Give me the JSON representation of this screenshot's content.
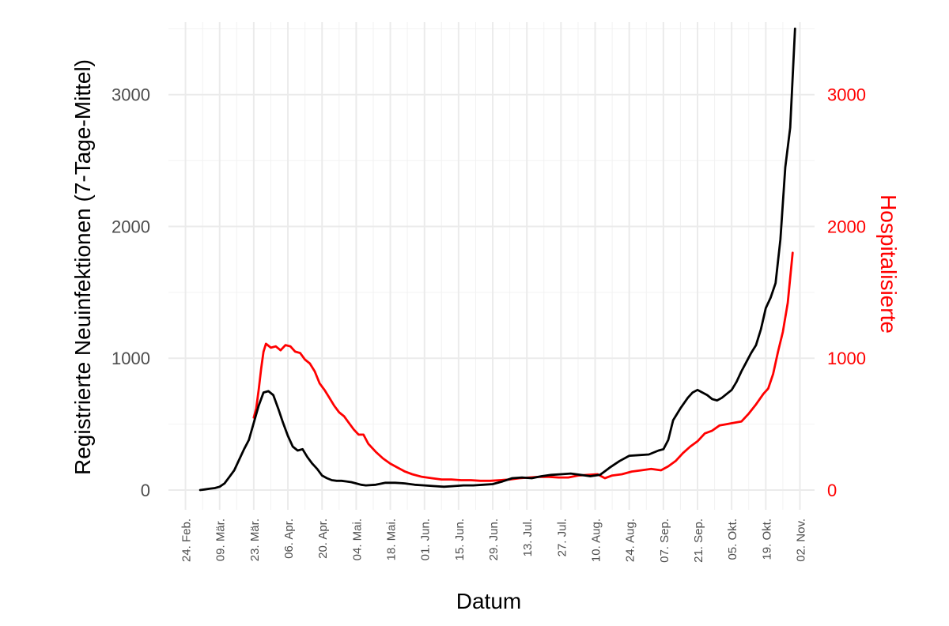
{
  "chart_data": {
    "type": "line",
    "xlabel": "Datum",
    "ylabel_left": "Registrierte Neuinfektionen (7-Tage-Mittel)",
    "ylabel_right": "Hospitalisierte",
    "x_range": [
      "2020-02-17",
      "2020-11-08"
    ],
    "ylim_left": [
      -150,
      3550
    ],
    "ylim_right": [
      -150,
      3550
    ],
    "y_ticks_left": [
      0,
      1000,
      2000,
      3000
    ],
    "y_ticks_right": [
      0,
      1000,
      2000,
      3000
    ],
    "x_ticks": [
      {
        "date": "2020-02-24",
        "label": "24. Feb."
      },
      {
        "date": "2020-03-09",
        "label": "09. Mär."
      },
      {
        "date": "2020-03-23",
        "label": "23. Mär."
      },
      {
        "date": "2020-04-06",
        "label": "06. Apr."
      },
      {
        "date": "2020-04-20",
        "label": "20. Apr."
      },
      {
        "date": "2020-05-04",
        "label": "04. Mai."
      },
      {
        "date": "2020-05-18",
        "label": "18. Mai."
      },
      {
        "date": "2020-06-01",
        "label": "01. Jun."
      },
      {
        "date": "2020-06-15",
        "label": "15. Jun."
      },
      {
        "date": "2020-06-29",
        "label": "29. Jun."
      },
      {
        "date": "2020-07-13",
        "label": "13. Jul."
      },
      {
        "date": "2020-07-27",
        "label": "27. Jul."
      },
      {
        "date": "2020-08-10",
        "label": "10. Aug."
      },
      {
        "date": "2020-08-24",
        "label": "24. Aug."
      },
      {
        "date": "2020-09-07",
        "label": "07. Sep."
      },
      {
        "date": "2020-09-21",
        "label": "21. Sep."
      },
      {
        "date": "2020-10-05",
        "label": "05. Okt."
      },
      {
        "date": "2020-10-19",
        "label": "19. Okt."
      },
      {
        "date": "2020-11-02",
        "label": "02. Nov."
      }
    ],
    "grid": true,
    "series": [
      {
        "color": "#000000",
        "axis": "left",
        "points": [
          [
            "2020-03-01",
            0
          ],
          [
            "2020-03-03",
            5
          ],
          [
            "2020-03-05",
            10
          ],
          [
            "2020-03-07",
            15
          ],
          [
            "2020-03-09",
            25
          ],
          [
            "2020-03-11",
            50
          ],
          [
            "2020-03-13",
            100
          ],
          [
            "2020-03-15",
            150
          ],
          [
            "2020-03-17",
            230
          ],
          [
            "2020-03-19",
            310
          ],
          [
            "2020-03-21",
            380
          ],
          [
            "2020-03-23",
            510
          ],
          [
            "2020-03-25",
            640
          ],
          [
            "2020-03-27",
            740
          ],
          [
            "2020-03-29",
            750
          ],
          [
            "2020-03-31",
            720
          ],
          [
            "2020-04-02",
            620
          ],
          [
            "2020-04-04",
            510
          ],
          [
            "2020-04-06",
            410
          ],
          [
            "2020-04-08",
            330
          ],
          [
            "2020-04-10",
            300
          ],
          [
            "2020-04-12",
            310
          ],
          [
            "2020-04-14",
            250
          ],
          [
            "2020-04-16",
            200
          ],
          [
            "2020-04-18",
            160
          ],
          [
            "2020-04-20",
            110
          ],
          [
            "2020-04-22",
            90
          ],
          [
            "2020-04-24",
            75
          ],
          [
            "2020-04-26",
            70
          ],
          [
            "2020-04-28",
            70
          ],
          [
            "2020-04-30",
            65
          ],
          [
            "2020-05-02",
            60
          ],
          [
            "2020-05-04",
            50
          ],
          [
            "2020-05-06",
            40
          ],
          [
            "2020-05-08",
            35
          ],
          [
            "2020-05-12",
            40
          ],
          [
            "2020-05-16",
            55
          ],
          [
            "2020-05-20",
            55
          ],
          [
            "2020-05-24",
            50
          ],
          [
            "2020-05-28",
            40
          ],
          [
            "2020-06-01",
            35
          ],
          [
            "2020-06-05",
            30
          ],
          [
            "2020-06-09",
            25
          ],
          [
            "2020-06-13",
            30
          ],
          [
            "2020-06-17",
            35
          ],
          [
            "2020-06-21",
            35
          ],
          [
            "2020-06-25",
            40
          ],
          [
            "2020-06-29",
            45
          ],
          [
            "2020-07-03",
            65
          ],
          [
            "2020-07-07",
            90
          ],
          [
            "2020-07-11",
            95
          ],
          [
            "2020-07-15",
            90
          ],
          [
            "2020-07-19",
            105
          ],
          [
            "2020-07-23",
            115
          ],
          [
            "2020-07-27",
            120
          ],
          [
            "2020-07-31",
            125
          ],
          [
            "2020-08-04",
            115
          ],
          [
            "2020-08-08",
            105
          ],
          [
            "2020-08-12",
            115
          ],
          [
            "2020-08-16",
            170
          ],
          [
            "2020-08-20",
            220
          ],
          [
            "2020-08-24",
            260
          ],
          [
            "2020-08-28",
            265
          ],
          [
            "2020-09-01",
            270
          ],
          [
            "2020-09-05",
            300
          ],
          [
            "2020-09-07",
            310
          ],
          [
            "2020-09-09",
            380
          ],
          [
            "2020-09-11",
            530
          ],
          [
            "2020-09-14",
            620
          ],
          [
            "2020-09-17",
            700
          ],
          [
            "2020-09-19",
            740
          ],
          [
            "2020-09-21",
            760
          ],
          [
            "2020-09-23",
            740
          ],
          [
            "2020-09-25",
            720
          ],
          [
            "2020-09-27",
            690
          ],
          [
            "2020-09-29",
            680
          ],
          [
            "2020-10-01",
            700
          ],
          [
            "2020-10-03",
            730
          ],
          [
            "2020-10-05",
            760
          ],
          [
            "2020-10-07",
            820
          ],
          [
            "2020-10-09",
            900
          ],
          [
            "2020-10-11",
            970
          ],
          [
            "2020-10-13",
            1040
          ],
          [
            "2020-10-15",
            1100
          ],
          [
            "2020-10-17",
            1220
          ],
          [
            "2020-10-19",
            1380
          ],
          [
            "2020-10-21",
            1460
          ],
          [
            "2020-10-23",
            1570
          ],
          [
            "2020-10-25",
            1900
          ],
          [
            "2020-10-27",
            2450
          ],
          [
            "2020-10-29",
            2750
          ],
          [
            "2020-10-31",
            3500
          ]
        ]
      },
      {
        "color": "#ff0000",
        "axis": "right",
        "points": [
          [
            "2020-03-23",
            550
          ],
          [
            "2020-03-24",
            620
          ],
          [
            "2020-03-25",
            760
          ],
          [
            "2020-03-26",
            920
          ],
          [
            "2020-03-27",
            1050
          ],
          [
            "2020-03-28",
            1110
          ],
          [
            "2020-03-30",
            1080
          ],
          [
            "2020-04-01",
            1090
          ],
          [
            "2020-04-03",
            1060
          ],
          [
            "2020-04-05",
            1100
          ],
          [
            "2020-04-07",
            1090
          ],
          [
            "2020-04-09",
            1050
          ],
          [
            "2020-04-11",
            1040
          ],
          [
            "2020-04-13",
            990
          ],
          [
            "2020-04-15",
            960
          ],
          [
            "2020-04-17",
            900
          ],
          [
            "2020-04-19",
            810
          ],
          [
            "2020-04-21",
            760
          ],
          [
            "2020-04-23",
            700
          ],
          [
            "2020-04-25",
            640
          ],
          [
            "2020-04-27",
            590
          ],
          [
            "2020-04-29",
            560
          ],
          [
            "2020-05-01",
            510
          ],
          [
            "2020-05-03",
            460
          ],
          [
            "2020-05-05",
            420
          ],
          [
            "2020-05-07",
            420
          ],
          [
            "2020-05-09",
            350
          ],
          [
            "2020-05-12",
            290
          ],
          [
            "2020-05-15",
            240
          ],
          [
            "2020-05-18",
            200
          ],
          [
            "2020-05-21",
            170
          ],
          [
            "2020-05-24",
            140
          ],
          [
            "2020-05-27",
            120
          ],
          [
            "2020-05-31",
            100
          ],
          [
            "2020-06-04",
            90
          ],
          [
            "2020-06-08",
            80
          ],
          [
            "2020-06-12",
            80
          ],
          [
            "2020-06-16",
            75
          ],
          [
            "2020-06-20",
            75
          ],
          [
            "2020-06-24",
            70
          ],
          [
            "2020-06-28",
            70
          ],
          [
            "2020-07-02",
            75
          ],
          [
            "2020-07-06",
            80
          ],
          [
            "2020-07-10",
            90
          ],
          [
            "2020-07-14",
            95
          ],
          [
            "2020-07-18",
            100
          ],
          [
            "2020-07-22",
            100
          ],
          [
            "2020-07-26",
            95
          ],
          [
            "2020-07-30",
            95
          ],
          [
            "2020-08-03",
            110
          ],
          [
            "2020-08-07",
            115
          ],
          [
            "2020-08-11",
            120
          ],
          [
            "2020-08-14",
            90
          ],
          [
            "2020-08-17",
            110
          ],
          [
            "2020-08-21",
            120
          ],
          [
            "2020-08-25",
            140
          ],
          [
            "2020-08-29",
            150
          ],
          [
            "2020-09-02",
            160
          ],
          [
            "2020-09-06",
            150
          ],
          [
            "2020-09-09",
            180
          ],
          [
            "2020-09-12",
            220
          ],
          [
            "2020-09-15",
            280
          ],
          [
            "2020-09-18",
            330
          ],
          [
            "2020-09-21",
            370
          ],
          [
            "2020-09-24",
            430
          ],
          [
            "2020-09-27",
            450
          ],
          [
            "2020-09-30",
            490
          ],
          [
            "2020-10-03",
            500
          ],
          [
            "2020-10-06",
            510
          ],
          [
            "2020-10-09",
            520
          ],
          [
            "2020-10-12",
            580
          ],
          [
            "2020-10-15",
            650
          ],
          [
            "2020-10-18",
            730
          ],
          [
            "2020-10-20",
            770
          ],
          [
            "2020-10-22",
            880
          ],
          [
            "2020-10-24",
            1050
          ],
          [
            "2020-10-26",
            1200
          ],
          [
            "2020-10-28",
            1420
          ],
          [
            "2020-10-30",
            1800
          ]
        ]
      }
    ]
  }
}
